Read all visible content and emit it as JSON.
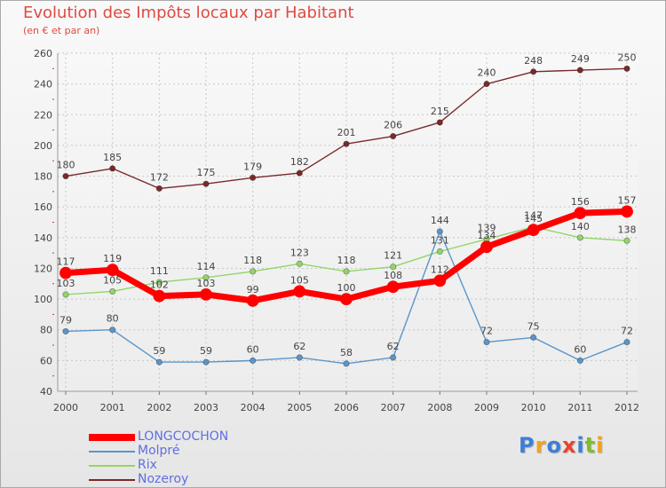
{
  "title": "Evolution des Impôts locaux par Habitant",
  "subtitle": "(en € et par an)",
  "logo": {
    "letters": [
      "P",
      "r",
      "o",
      "x",
      "i",
      "t",
      "i"
    ],
    "colors": [
      "#3d7fd6",
      "#f0a320",
      "#3d7fd6",
      "#e8452c",
      "#3d7fd6",
      "#7cbf2a",
      "#f0a320"
    ]
  },
  "chart_data": {
    "type": "line",
    "title": "Evolution des Impôts locaux par Habitant",
    "subtitle": "(en € et par an)",
    "xlabel": "",
    "ylabel": "",
    "x": [
      "2000",
      "2001",
      "2002",
      "2003",
      "2004",
      "2005",
      "2006",
      "2007",
      "2008",
      "2009",
      "2010",
      "2011",
      "2012"
    ],
    "ylim": [
      40,
      260
    ],
    "yticks": [
      "40",
      "60",
      "80",
      "100",
      "120",
      "140",
      "160",
      "180",
      "200",
      "220",
      "240",
      "260"
    ],
    "grid": true,
    "legend_position": "bottom-left",
    "series": [
      {
        "name": "LONGCOCHON",
        "color": "#ff0000",
        "values": [
          117,
          119,
          102,
          103,
          99,
          105,
          100,
          108,
          112,
          134,
          145,
          156,
          157
        ]
      },
      {
        "name": "Molpré",
        "color": "#5b95c9",
        "values": [
          79,
          80,
          59,
          59,
          60,
          62,
          58,
          62,
          144,
          72,
          75,
          60,
          72
        ]
      },
      {
        "name": "Rix",
        "color": "#92d56a",
        "values": [
          103,
          105,
          111,
          114,
          118,
          123,
          118,
          121,
          131,
          139,
          147,
          140,
          138
        ]
      },
      {
        "name": "Nozeroy",
        "color": "#7a2a2a",
        "values": [
          180,
          185,
          172,
          175,
          179,
          182,
          201,
          206,
          215,
          240,
          248,
          249,
          250
        ]
      }
    ],
    "data_labels": [
      [
        "117",
        "119",
        "102",
        "103",
        "99",
        "105",
        "100",
        "108",
        "112",
        "134",
        "145",
        "156",
        "157"
      ],
      [
        "79",
        "80",
        "59",
        "59",
        "60",
        "62",
        "58",
        "62",
        "144",
        "72",
        "75",
        "60",
        "72"
      ],
      [
        "103",
        "105",
        "111",
        "114",
        "118",
        "123",
        "118",
        "121",
        "131",
        "139",
        "147",
        "140",
        "138"
      ],
      [
        "180",
        "185",
        "172",
        "175",
        "179",
        "182",
        "201",
        "206",
        "215",
        "240",
        "248",
        "249",
        "250"
      ]
    ]
  }
}
